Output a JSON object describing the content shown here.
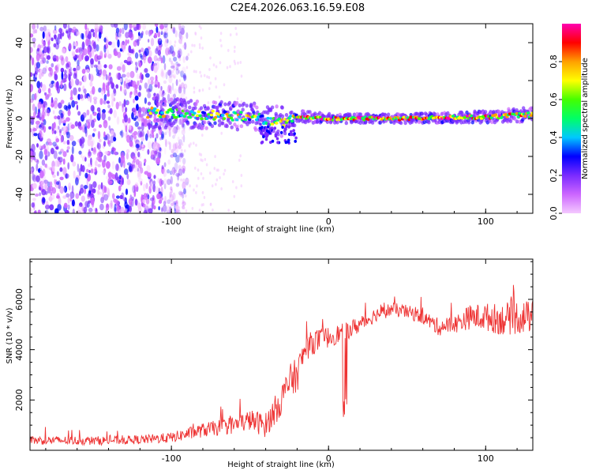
{
  "title": "C2E4.2026.063.16.59.E08",
  "chart_data": [
    {
      "type": "heatmap",
      "name": "spectrogram",
      "xlabel": "Height of straight line (km)",
      "ylabel": "Frequency (Hz)",
      "xlim": [
        -190,
        130
      ],
      "ylim": [
        -50,
        50
      ],
      "xticks": [
        -100,
        0,
        100
      ],
      "yticks": [
        -40,
        -20,
        0,
        20,
        40
      ],
      "colorbar": {
        "label": "Normalized spectral amplitude",
        "range": [
          0,
          1
        ],
        "ticks": [
          "0.0",
          "0.2",
          "0.4",
          "0.6",
          "0.8"
        ],
        "tick_values": [
          0.0,
          0.2,
          0.4,
          0.6,
          0.8
        ],
        "colors": [
          "#f4c9ff",
          "#cc66ff",
          "#7a2bff",
          "#0000ff",
          "#00c8ff",
          "#00ff66",
          "#44ff00",
          "#ffff00",
          "#ffa000",
          "#ff0000",
          "#ff00b0"
        ]
      },
      "signal_band": [
        {
          "x": -110,
          "f_center": 3,
          "f_width": 10
        },
        {
          "x": -80,
          "f_center": 2,
          "f_width": 9
        },
        {
          "x": -50,
          "f_center": 1,
          "f_width": 9
        },
        {
          "x": -30,
          "f_center": -2,
          "f_width": 10
        },
        {
          "x": -20,
          "f_center": 1,
          "f_width": 4
        },
        {
          "x": 0,
          "f_center": 0,
          "f_width": 3
        },
        {
          "x": 50,
          "f_center": 0,
          "f_width": 3
        },
        {
          "x": 100,
          "f_center": 1,
          "f_width": 4
        },
        {
          "x": 130,
          "f_center": 2,
          "f_width": 5
        }
      ],
      "noise_region_x": [
        -190,
        -100
      ]
    },
    {
      "type": "line",
      "name": "snr",
      "xlabel": "Height of straight line (km)",
      "ylabel": "SNR (10 * v/v)",
      "xlim": [
        -190,
        130
      ],
      "ylim": [
        0,
        7600
      ],
      "xticks": [
        -100,
        0,
        100
      ],
      "yticks": [
        2000,
        4000,
        6000
      ],
      "color": "#ee3333",
      "series": [
        {
          "name": "SNR",
          "x": [
            -190,
            -150,
            -120,
            -100,
            -80,
            -60,
            -50,
            -40,
            -30,
            -25,
            -20,
            -15,
            -10,
            0,
            10,
            20,
            30,
            40,
            50,
            60,
            70,
            80,
            90,
            100,
            110,
            120,
            130
          ],
          "values": [
            400,
            380,
            420,
            500,
            800,
            1000,
            1200,
            1000,
            2000,
            2700,
            3000,
            4000,
            4300,
            4500,
            4700,
            5000,
            5400,
            5600,
            5500,
            5300,
            4900,
            5000,
            5300,
            5300,
            5200,
            5300,
            5300
          ],
          "noise_amplitude": [
            250,
            250,
            250,
            300,
            400,
            500,
            600,
            700,
            900,
            1000,
            1000,
            700,
            700,
            600,
            500,
            500,
            400,
            400,
            400,
            400,
            500,
            500,
            700,
            800,
            900,
            1000,
            900
          ]
        }
      ]
    }
  ]
}
